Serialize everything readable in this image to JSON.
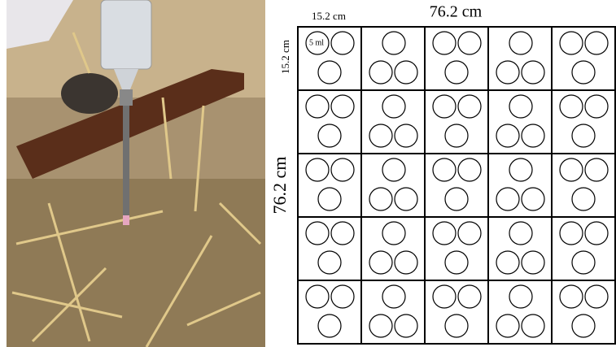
{
  "diagram": {
    "top_total": "76.2 cm",
    "top_cell": "15.2 cm",
    "left_cell": "15.2 cm",
    "left_total": "76.2 cm",
    "volume": "5 ml"
  }
}
